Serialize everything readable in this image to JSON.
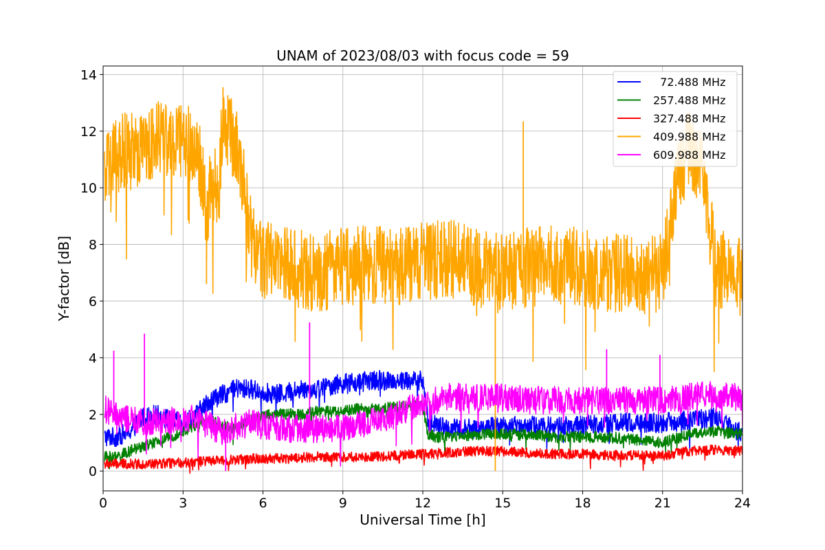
{
  "chart_data": {
    "type": "line",
    "title": "UNAM of 2023/08/03 with focus code = 59",
    "xlabel": "Universal Time [h]",
    "ylabel": "Y-factor [dB]",
    "xlim": [
      0,
      24
    ],
    "ylim": [
      -0.7,
      14.3
    ],
    "xticks": [
      0,
      3,
      6,
      9,
      12,
      15,
      18,
      21,
      24
    ],
    "yticks": [
      0,
      2,
      4,
      6,
      8,
      10,
      12,
      14
    ],
    "grid": true,
    "legend_position": "top-right",
    "series": [
      {
        "name": "  72.488 MHz",
        "color": "#0000ff",
        "x": [
          0.05,
          0.5,
          1.0,
          1.5,
          2.0,
          2.5,
          3.0,
          3.5,
          4.0,
          4.5,
          5.0,
          5.5,
          6.0,
          6.5,
          7.0,
          7.5,
          8.0,
          8.5,
          9.0,
          9.5,
          10.0,
          10.5,
          11.0,
          11.5,
          12.0,
          12.2,
          12.5,
          13.0,
          14.0,
          15.0,
          16.0,
          17.0,
          18.0,
          19.0,
          20.0,
          21.0,
          22.0,
          23.0,
          24.0
        ],
        "values": [
          1.2,
          1.2,
          1.4,
          1.9,
          2.0,
          1.8,
          1.7,
          2.0,
          2.5,
          2.7,
          2.9,
          2.9,
          2.8,
          2.7,
          2.8,
          2.9,
          2.9,
          3.0,
          3.1,
          3.1,
          3.2,
          3.2,
          3.2,
          3.2,
          3.2,
          1.8,
          1.6,
          1.5,
          1.5,
          1.6,
          1.6,
          1.6,
          1.6,
          1.7,
          1.7,
          1.7,
          1.8,
          1.9,
          1.3
        ],
        "noise": 0.35
      },
      {
        "name": "257.488 MHz",
        "color": "#008000",
        "x": [
          0.05,
          0.5,
          1.0,
          1.5,
          2.0,
          2.5,
          3.0,
          3.5,
          4.0,
          4.5,
          5.0,
          5.5,
          6.0,
          6.5,
          7.0,
          7.5,
          8.0,
          8.5,
          9.0,
          9.5,
          10.0,
          10.5,
          11.0,
          11.5,
          12.0,
          12.2,
          12.5,
          13.0,
          14.0,
          15.0,
          16.0,
          17.0,
          18.0,
          19.0,
          20.0,
          21.0,
          22.0,
          23.0,
          24.0
        ],
        "values": [
          0.5,
          0.5,
          0.7,
          0.9,
          1.0,
          1.2,
          1.4,
          1.6,
          1.8,
          1.6,
          1.5,
          1.8,
          2.0,
          2.0,
          2.0,
          2.0,
          2.1,
          2.1,
          2.1,
          2.2,
          2.2,
          2.2,
          2.3,
          2.3,
          2.3,
          1.3,
          1.2,
          1.2,
          1.3,
          1.3,
          1.3,
          1.2,
          1.2,
          1.2,
          1.1,
          1.0,
          1.3,
          1.4,
          1.3
        ],
        "noise": 0.2
      },
      {
        "name": "327.488 MHz",
        "color": "#ff0000",
        "x": [
          0.05,
          1.0,
          2.0,
          3.0,
          4.0,
          5.0,
          6.0,
          7.0,
          8.0,
          9.0,
          10.0,
          11.0,
          12.0,
          13.0,
          14.0,
          15.0,
          16.0,
          17.0,
          18.0,
          19.0,
          20.0,
          21.0,
          22.0,
          23.0,
          24.0
        ],
        "values": [
          0.25,
          0.25,
          0.25,
          0.3,
          0.35,
          0.4,
          0.45,
          0.45,
          0.5,
          0.5,
          0.5,
          0.55,
          0.6,
          0.65,
          0.7,
          0.7,
          0.65,
          0.6,
          0.6,
          0.55,
          0.55,
          0.55,
          0.7,
          0.75,
          0.7
        ],
        "noise": 0.18
      },
      {
        "name": "409.988 MHz",
        "color": "#ffa500",
        "x": [
          0.05,
          0.3,
          0.6,
          1.0,
          1.5,
          2.0,
          2.3,
          2.5,
          3.0,
          3.3,
          3.6,
          3.8,
          3.9,
          4.0,
          4.2,
          4.35,
          4.5,
          4.7,
          5.0,
          5.2,
          5.4,
          5.6,
          6.0,
          7.0,
          8.0,
          9.0,
          10.0,
          11.0,
          12.0,
          13.0,
          14.0,
          15.0,
          16.0,
          17.0,
          18.0,
          19.0,
          20.0,
          21.0,
          21.5,
          22.0,
          22.5,
          23.0,
          24.0
        ],
        "values": [
          10.3,
          10.8,
          11.2,
          11.3,
          11.5,
          11.8,
          12.0,
          11.5,
          11.7,
          11.6,
          11.0,
          9.8,
          8.5,
          9.8,
          10.3,
          9.8,
          12.8,
          12.0,
          11.5,
          10.5,
          9.5,
          8.0,
          7.5,
          7.2,
          7.0,
          7.2,
          7.3,
          7.2,
          7.4,
          7.5,
          7.2,
          7.0,
          7.2,
          7.3,
          7.2,
          7.0,
          7.0,
          7.0,
          10.0,
          11.5,
          10.5,
          7.2,
          6.8
        ],
        "noise": 1.4,
        "spikes": [
          [
            3.88,
            6.6
          ],
          [
            15.77,
            12.35
          ],
          [
            14.72,
            0.0
          ],
          [
            4.5,
            13.55
          ]
        ]
      },
      {
        "name": "609.988 MHz",
        "color": "#ff00ff",
        "x": [
          0.05,
          0.5,
          1.0,
          1.5,
          2.0,
          2.5,
          3.0,
          3.5,
          4.0,
          4.5,
          5.0,
          5.5,
          6.0,
          6.5,
          7.0,
          7.5,
          8.0,
          8.5,
          9.0,
          9.5,
          10.0,
          10.5,
          11.0,
          11.5,
          12.0,
          12.5,
          13.0,
          14.0,
          15.0,
          16.0,
          17.0,
          18.0,
          19.0,
          20.0,
          21.0,
          22.0,
          23.0,
          24.0
        ],
        "values": [
          2.2,
          1.9,
          1.8,
          1.7,
          1.8,
          1.8,
          1.9,
          1.8,
          1.6,
          1.4,
          1.6,
          1.7,
          1.6,
          1.6,
          1.5,
          1.5,
          1.5,
          1.5,
          1.5,
          1.6,
          1.7,
          1.8,
          2.0,
          2.2,
          2.4,
          2.5,
          2.6,
          2.6,
          2.6,
          2.5,
          2.5,
          2.5,
          2.5,
          2.5,
          2.5,
          2.6,
          2.7,
          2.6
        ],
        "noise": 0.5,
        "spikes": [
          [
            0.4,
            4.25
          ],
          [
            1.55,
            4.85
          ],
          [
            7.75,
            5.25
          ],
          [
            4.6,
            0.0
          ],
          [
            18.9,
            4.3
          ],
          [
            20.9,
            4.1
          ]
        ]
      }
    ]
  }
}
